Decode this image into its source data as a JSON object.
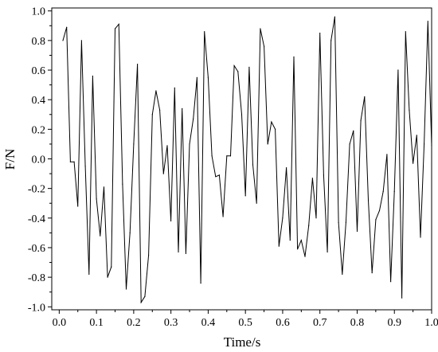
{
  "chart_data": {
    "type": "line",
    "title": "",
    "xlabel": "Time/s",
    "ylabel": "F/N",
    "xlim": [
      -0.02,
      1.0
    ],
    "ylim": [
      -1.02,
      1.02
    ],
    "xticks": [
      0.0,
      0.1,
      0.2,
      0.3,
      0.4,
      0.5,
      0.6,
      0.7,
      0.8,
      0.9,
      1.0
    ],
    "xtick_labels": [
      "0.0",
      "0.1",
      "0.2",
      "0.3",
      "0.4",
      "0.5",
      "0.6",
      "0.7",
      "0.8",
      "0.9",
      "1.0"
    ],
    "yticks": [
      -1.0,
      -0.8,
      -0.6,
      -0.4,
      -0.2,
      0.0,
      0.2,
      0.4,
      0.6,
      0.8,
      1.0
    ],
    "ytick_labels": [
      "-1.0",
      "-0.8",
      "-0.6",
      "-0.4",
      "-0.2",
      "0.0",
      "0.2",
      "0.4",
      "0.6",
      "0.8",
      "1.0"
    ],
    "grid": false,
    "line_color": "#000000",
    "series": [
      {
        "x": [
          0.01,
          0.02,
          0.03,
          0.04,
          0.05,
          0.06,
          0.07,
          0.08,
          0.09,
          0.1,
          0.11,
          0.12,
          0.13,
          0.14,
          0.15,
          0.16,
          0.17,
          0.18,
          0.19,
          0.2,
          0.21,
          0.22,
          0.23,
          0.24,
          0.25,
          0.26,
          0.27,
          0.28,
          0.29,
          0.3,
          0.31,
          0.32,
          0.33,
          0.34,
          0.35,
          0.36,
          0.37,
          0.38,
          0.39,
          0.4,
          0.41,
          0.42,
          0.43,
          0.44,
          0.45,
          0.46,
          0.47,
          0.48,
          0.49,
          0.5,
          0.51,
          0.52,
          0.53,
          0.54,
          0.55,
          0.56,
          0.57,
          0.58,
          0.59,
          0.6,
          0.61,
          0.62,
          0.63,
          0.64,
          0.65,
          0.66,
          0.67,
          0.68,
          0.69,
          0.7,
          0.71,
          0.72,
          0.73,
          0.74,
          0.75,
          0.76,
          0.77,
          0.78,
          0.79,
          0.8,
          0.81,
          0.82,
          0.83,
          0.84,
          0.85,
          0.86,
          0.87,
          0.88,
          0.89,
          0.9,
          0.91,
          0.92,
          0.93,
          0.94,
          0.95,
          0.96,
          0.97,
          0.98,
          0.99,
          1.0
        ],
        "y": [
          0.8,
          0.89,
          -0.02,
          -0.02,
          -0.32,
          0.8,
          -0.05,
          -0.78,
          0.56,
          -0.27,
          -0.52,
          -0.19,
          -0.8,
          -0.73,
          0.88,
          0.91,
          -0.17,
          -0.88,
          -0.5,
          0.1,
          0.64,
          -0.97,
          -0.93,
          -0.65,
          0.3,
          0.46,
          0.33,
          -0.1,
          0.09,
          -0.42,
          0.48,
          -0.63,
          0.34,
          -0.64,
          0.1,
          0.27,
          0.55,
          -0.84,
          0.86,
          0.55,
          0.02,
          -0.12,
          -0.11,
          -0.39,
          0.02,
          0.02,
          0.63,
          0.59,
          0.3,
          -0.25,
          0.62,
          -0.04,
          -0.3,
          0.88,
          0.76,
          0.1,
          0.25,
          0.2,
          -0.59,
          -0.4,
          -0.06,
          -0.55,
          0.69,
          -0.61,
          -0.55,
          -0.66,
          -0.45,
          -0.13,
          -0.4,
          0.85,
          -0.11,
          -0.63,
          0.8,
          0.96,
          -0.43,
          -0.78,
          -0.43,
          0.1,
          0.19,
          -0.49,
          0.26,
          0.42,
          -0.28,
          -0.77,
          -0.41,
          -0.35,
          -0.22,
          0.03,
          -0.83,
          -0.22,
          0.6,
          -0.94,
          0.86,
          0.33,
          -0.03,
          0.16,
          -0.53,
          0.1,
          0.93,
          0.09
        ]
      }
    ]
  }
}
